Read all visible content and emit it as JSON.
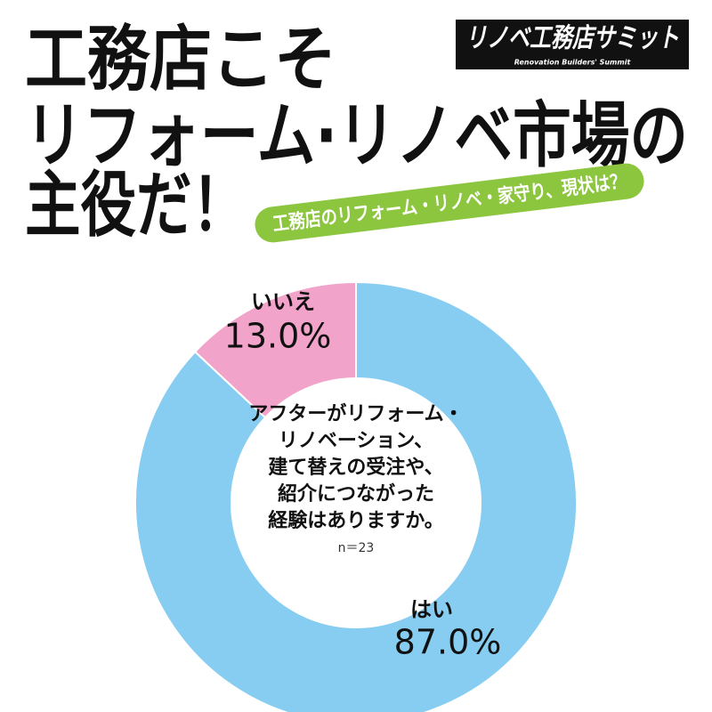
{
  "header": {
    "title_lines": [
      "工務店こそ",
      "リフォーム·リノベ市場の",
      "主役だ！"
    ],
    "logo": "リノベ工務店サミット",
    "logo_sub": "Renovation Builders' Summit",
    "subtitle": "工務店のリフォーム・リノベ・家守り、現状は？"
  },
  "chart_data": {
    "type": "pie",
    "donut": true,
    "question": [
      "アフターがリフォーム・",
      "リノベーション、",
      "建て替えの受注や、",
      "紹介につながった",
      "経験はありますか。"
    ],
    "note": "n＝23",
    "categories": [
      "はい",
      "いいえ"
    ],
    "values": [
      87.0,
      13.0
    ],
    "value_labels": [
      "87.0%",
      "13.0%"
    ],
    "colors": [
      "#86cdf1",
      "#f1a3c9"
    ]
  }
}
